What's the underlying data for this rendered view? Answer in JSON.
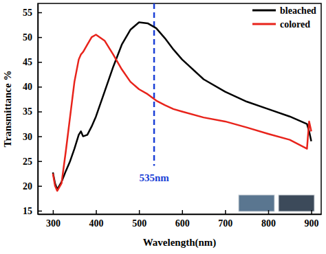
{
  "chart_data": {
    "type": "line",
    "x_label": "Wavelength(nm)",
    "y_label": "Transmittance %",
    "x": [
      300,
      305,
      310,
      320,
      330,
      340,
      350,
      360,
      365,
      370,
      380,
      390,
      400,
      420,
      440,
      460,
      480,
      500,
      520,
      540,
      560,
      580,
      600,
      650,
      700,
      750,
      800,
      850,
      890,
      895,
      900
    ],
    "series": [
      {
        "name": "bleached",
        "color": "#000000",
        "values": [
          22.7,
          20.5,
          19.3,
          20.8,
          23,
          25,
          27.5,
          30.3,
          31,
          30,
          30.3,
          32,
          34,
          39,
          44,
          48.5,
          51.5,
          53,
          52.8,
          51.8,
          49.8,
          47.5,
          45.5,
          41.5,
          39,
          37,
          35.5,
          34,
          32.5,
          31,
          29
        ]
      },
      {
        "name": "colored",
        "color": "#e8231b",
        "values": [
          22.5,
          20,
          19,
          20.5,
          27,
          34,
          41,
          45.5,
          46.5,
          47,
          48.5,
          50,
          50.5,
          49.3,
          46.5,
          43.5,
          41,
          39.5,
          38.5,
          37.2,
          36.3,
          35.5,
          35,
          33.8,
          33,
          31.8,
          30.5,
          29.3,
          27.5,
          33,
          31
        ]
      }
    ],
    "xlim": [
      265,
      923
    ],
    "ylim": [
      14.3,
      56.8
    ],
    "xticks": [
      300,
      400,
      500,
      600,
      700,
      800,
      900
    ],
    "yticks": [
      15,
      20,
      25,
      30,
      35,
      40,
      45,
      50,
      55
    ],
    "annotations": [
      {
        "text": "535nm",
        "x": 535,
        "y": 21,
        "color": "#1a3fd6",
        "line_style": "dashed"
      }
    ],
    "legend": "upper right",
    "grid": false
  }
}
